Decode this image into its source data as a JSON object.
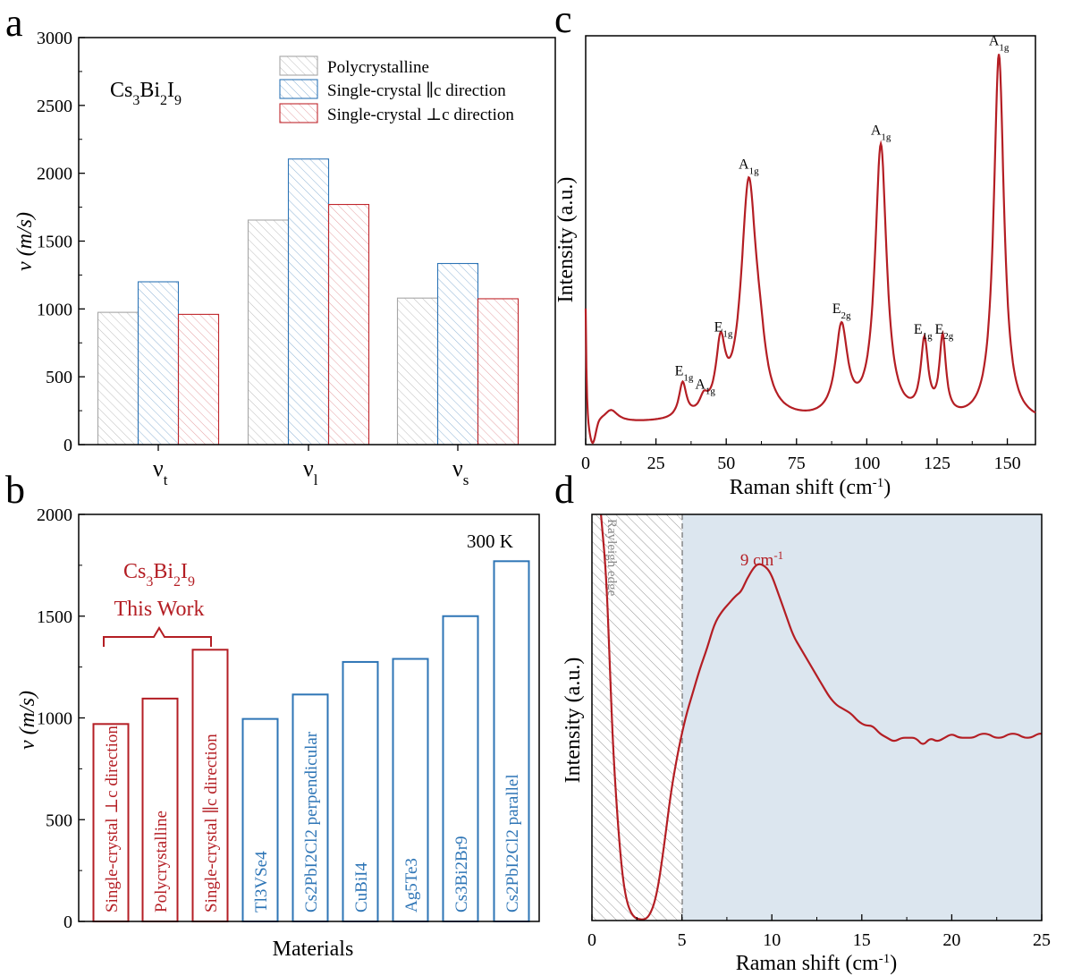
{
  "colors": {
    "gray": "#a6a6a6",
    "blue": "#2e75b6",
    "red": "#c0272d",
    "darkred": "#b41e24",
    "shade": "#dce6ef",
    "hatch_gray": "#bdbdbd"
  },
  "chart_data": [
    {
      "panel": "a",
      "type": "bar",
      "annotation": "Cs3Bi2I9",
      "categories": [
        "v_t",
        "v_l",
        "v_s"
      ],
      "ylabel": "ν (m/s)",
      "ylim": [
        0,
        3000
      ],
      "yticks": [
        0,
        500,
        1000,
        1500,
        2000,
        2500,
        3000
      ],
      "legend_position": "top-right",
      "series": [
        {
          "name": "Polycrystalline",
          "color": "gray",
          "values": [
            975,
            1655,
            1080
          ]
        },
        {
          "name": "Single-crystal ∥c direction",
          "color": "blue",
          "values": [
            1200,
            2105,
            1335
          ]
        },
        {
          "name": "Single-crystal ⊥c direction",
          "color": "red",
          "values": [
            960,
            1770,
            1075
          ]
        }
      ]
    },
    {
      "panel": "b",
      "type": "bar",
      "xlabel": "Materials",
      "ylabel": "ν (m/s)",
      "ylim": [
        0,
        2000
      ],
      "yticks": [
        0,
        500,
        1000,
        1500,
        2000
      ],
      "annotation_temperature": "300 K",
      "group_label": "Cs3Bi2I9",
      "group_sublabel": "This Work",
      "bars": [
        {
          "label": "Single-crystal ⊥c direction",
          "value": 970,
          "color": "red"
        },
        {
          "label": "Polycrystalline",
          "value": 1095,
          "color": "red"
        },
        {
          "label": "Single-crystal ∥c direction",
          "value": 1335,
          "color": "red"
        },
        {
          "label": "Tl3VSe4",
          "value": 995,
          "color": "blue"
        },
        {
          "label": "Cs2PbI2Cl2 perpendicular",
          "value": 1115,
          "color": "blue"
        },
        {
          "label": "CuBiI4",
          "value": 1275,
          "color": "blue"
        },
        {
          "label": "Ag5Te3",
          "value": 1290,
          "color": "blue"
        },
        {
          "label": "Cs3Bi2Br9",
          "value": 1500,
          "color": "blue"
        },
        {
          "label": "Cs2PbI2Cl2 parallel",
          "value": 1770,
          "color": "blue"
        }
      ]
    },
    {
      "panel": "c",
      "type": "line",
      "xlabel": "Raman shift (cm-1)",
      "ylabel": "Intensity (a.u.)",
      "xlim": [
        0,
        160
      ],
      "xticks": [
        0,
        25,
        50,
        75,
        100,
        125,
        150
      ],
      "ylim": [
        0,
        1
      ],
      "baseline": 0.05,
      "peaks": [
        {
          "center": 9,
          "height": 0.03,
          "width": 3
        },
        {
          "center": 34.5,
          "height": 0.085,
          "width": 1.6
        },
        {
          "center": 42,
          "height": 0.035,
          "width": 1.8
        },
        {
          "center": 48,
          "height": 0.16,
          "width": 2.0
        },
        {
          "center": 58,
          "height": 0.57,
          "width": 3.3
        },
        {
          "center": 62,
          "height": 0.08,
          "width": 2.5
        },
        {
          "center": 91,
          "height": 0.22,
          "width": 2.6
        },
        {
          "center": 105,
          "height": 0.67,
          "width": 2.5
        },
        {
          "center": 120.5,
          "height": 0.18,
          "width": 1.6
        },
        {
          "center": 127,
          "height": 0.19,
          "width": 1.4
        },
        {
          "center": 147,
          "height": 0.9,
          "width": 2.2
        }
      ],
      "labels": [
        {
          "letter": "E",
          "sub": "1g",
          "x": 35
        },
        {
          "letter": "A",
          "sub": "1g",
          "x": 42.5
        },
        {
          "letter": "E",
          "sub": "1g",
          "x": 49
        },
        {
          "letter": "A",
          "sub": "1g",
          "x": 58
        },
        {
          "letter": "E",
          "sub": "2g",
          "x": 91
        },
        {
          "letter": "A",
          "sub": "1g",
          "x": 105
        },
        {
          "letter": "E",
          "sub": "1g",
          "x": 120
        },
        {
          "letter": "E",
          "sub": "2g",
          "x": 127.5
        },
        {
          "letter": "A",
          "sub": "1g",
          "x": 147
        }
      ]
    },
    {
      "panel": "d",
      "type": "line",
      "xlabel": "Raman shift (cm-1)",
      "ylabel": "Intensity (a.u.)",
      "xlim": [
        0,
        25
      ],
      "xticks": [
        0,
        5,
        10,
        15,
        20,
        25
      ],
      "ylim": [
        0,
        1
      ],
      "rayleigh_edge_label": "Rayleigh edge",
      "rayleigh_edge_x": 5,
      "peak_label": "9 cm-1",
      "peak_label_x": 9.3,
      "points": [
        [
          0.5,
          1.05
        ],
        [
          0.8,
          0.85
        ],
        [
          1.0,
          0.62
        ],
        [
          1.2,
          0.4
        ],
        [
          1.5,
          0.2
        ],
        [
          1.8,
          0.07
        ],
        [
          2.2,
          0.01
        ],
        [
          2.8,
          0.0
        ],
        [
          3.2,
          0.01
        ],
        [
          3.6,
          0.06
        ],
        [
          4.0,
          0.18
        ],
        [
          4.4,
          0.32
        ],
        [
          4.8,
          0.42
        ],
        [
          5.2,
          0.5
        ],
        [
          5.6,
          0.56
        ],
        [
          6.0,
          0.62
        ],
        [
          6.4,
          0.67
        ],
        [
          6.8,
          0.73
        ],
        [
          7.2,
          0.76
        ],
        [
          7.6,
          0.78
        ],
        [
          8.0,
          0.8
        ],
        [
          8.3,
          0.81
        ],
        [
          8.6,
          0.84
        ],
        [
          9.0,
          0.87
        ],
        [
          9.3,
          0.88
        ],
        [
          9.7,
          0.87
        ],
        [
          10.0,
          0.85
        ],
        [
          10.4,
          0.8
        ],
        [
          10.8,
          0.75
        ],
        [
          11.2,
          0.7
        ],
        [
          11.6,
          0.67
        ],
        [
          12.0,
          0.64
        ],
        [
          12.4,
          0.61
        ],
        [
          12.8,
          0.58
        ],
        [
          13.2,
          0.55
        ],
        [
          13.6,
          0.53
        ],
        [
          14.0,
          0.52
        ],
        [
          14.4,
          0.51
        ],
        [
          14.8,
          0.49
        ],
        [
          15.2,
          0.48
        ],
        [
          15.6,
          0.48
        ],
        [
          16.0,
          0.46
        ],
        [
          16.4,
          0.45
        ],
        [
          16.8,
          0.44
        ],
        [
          17.2,
          0.45
        ],
        [
          17.6,
          0.45
        ],
        [
          18.0,
          0.45
        ],
        [
          18.4,
          0.43
        ],
        [
          18.8,
          0.45
        ],
        [
          19.2,
          0.44
        ],
        [
          19.6,
          0.45
        ],
        [
          20.0,
          0.46
        ],
        [
          20.4,
          0.45
        ],
        [
          20.8,
          0.45
        ],
        [
          21.2,
          0.45
        ],
        [
          21.6,
          0.46
        ],
        [
          22.0,
          0.46
        ],
        [
          22.4,
          0.45
        ],
        [
          22.8,
          0.45
        ],
        [
          23.2,
          0.46
        ],
        [
          23.6,
          0.46
        ],
        [
          24.0,
          0.45
        ],
        [
          24.4,
          0.45
        ],
        [
          24.8,
          0.46
        ],
        [
          25.0,
          0.46
        ]
      ]
    }
  ],
  "panel_labels": [
    "a",
    "b",
    "c",
    "d"
  ]
}
